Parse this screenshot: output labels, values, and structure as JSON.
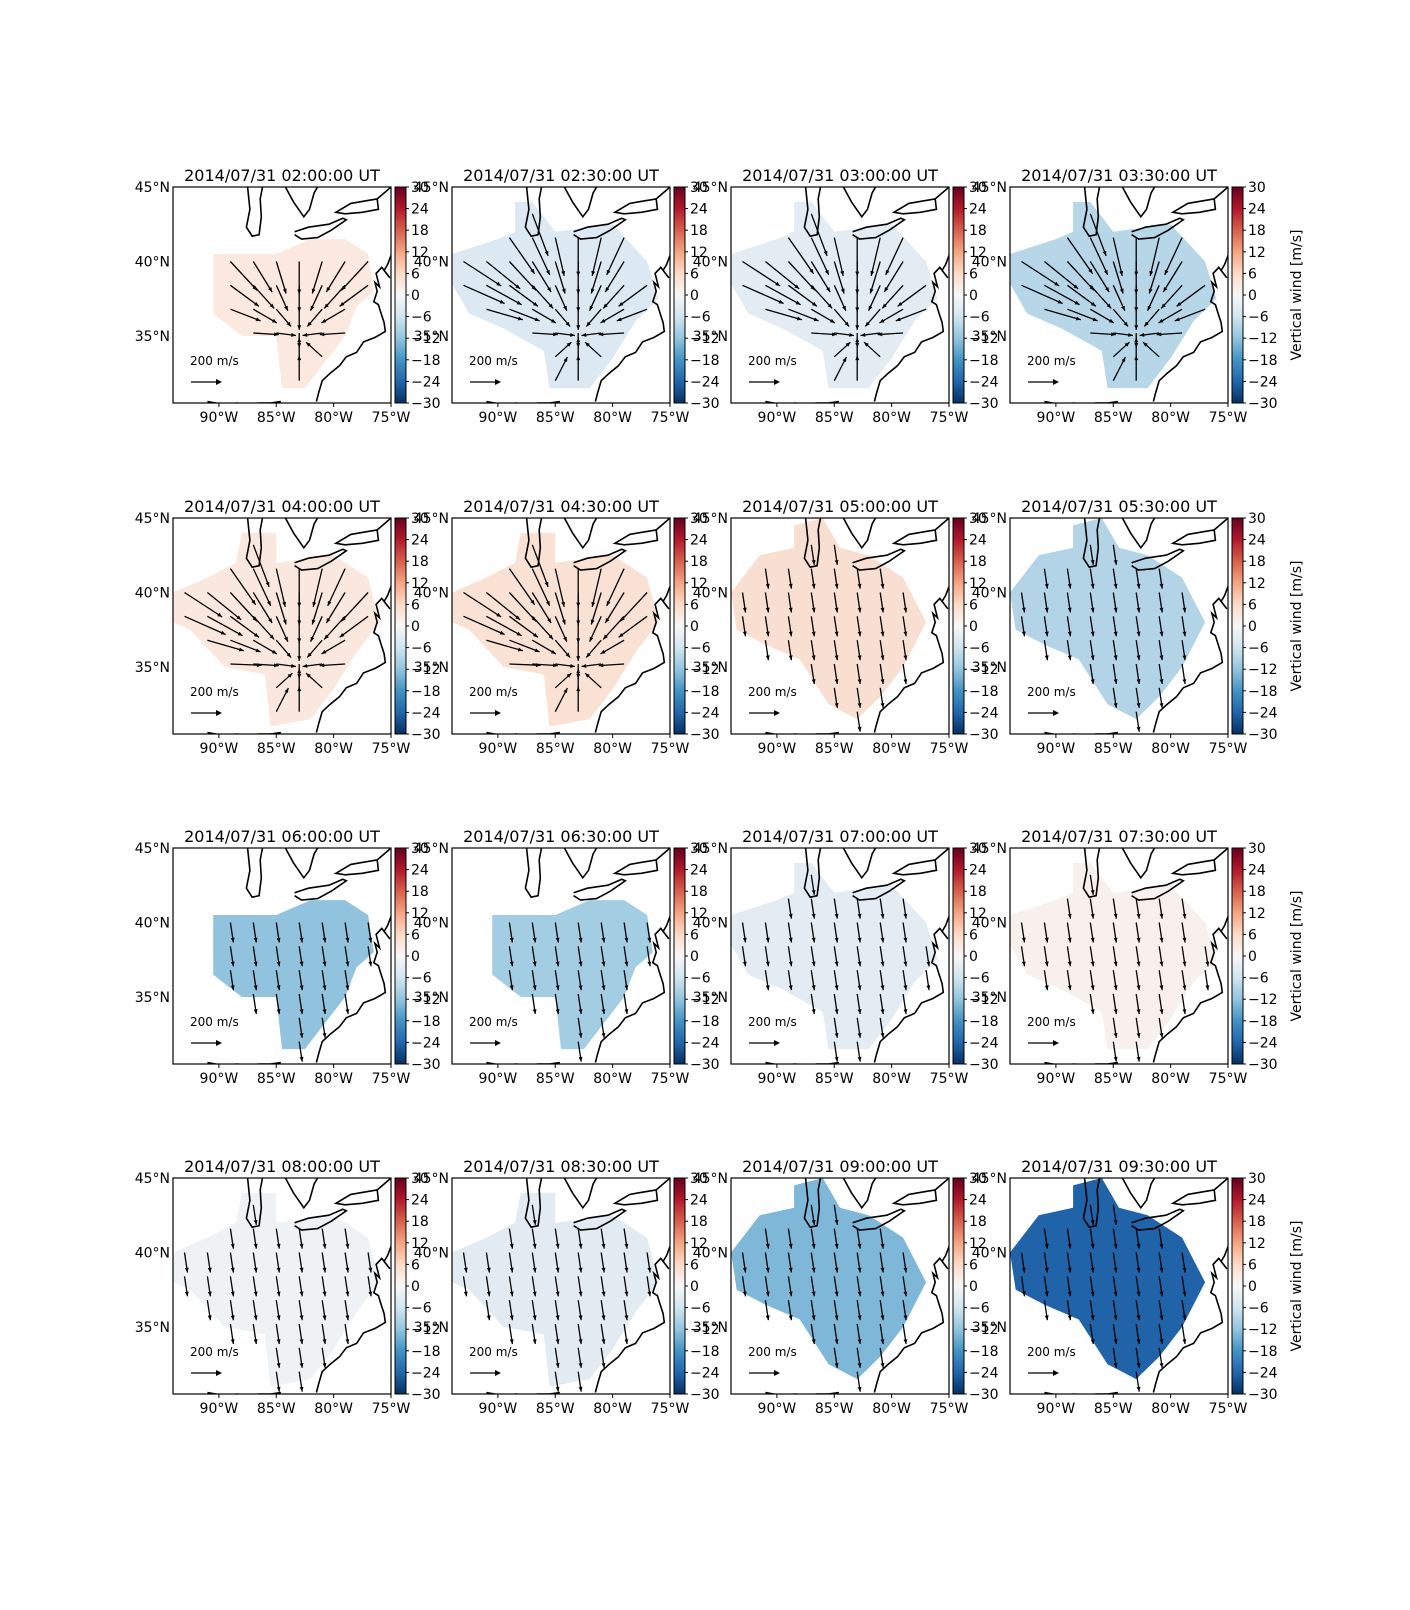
{
  "figure": {
    "colorbar_label": "Vertical wind [m/s]",
    "colorbar_ticks": [
      "30",
      "24",
      "18",
      "12",
      "6",
      "0",
      "−6",
      "−12",
      "−18",
      "−24",
      "−30"
    ],
    "lon_labels": [
      "90°W",
      "85°W",
      "80°W",
      "75°W"
    ],
    "lat_labels": [
      "45°N",
      "40°N",
      "35°N"
    ],
    "reference_arrow_label": "200 m/s",
    "colors": {
      "strong_positive": "#67001f",
      "positive": "#f7d6c6",
      "neutral": "#f7f7f7",
      "negative": "#b7d6e8",
      "strong_negative": "#053061",
      "coastline": "#000000",
      "arrow": "#000000"
    }
  },
  "chart_data": {
    "type": "heatmap",
    "panel_count": 16,
    "grid": "4x4",
    "colorbar_range": [
      -30,
      30
    ],
    "lon_range": [
      -94,
      -75
    ],
    "lat_range": [
      30.5,
      45
    ],
    "reference_arrow": {
      "value": 200,
      "unit": "m/s"
    },
    "panels": [
      {
        "title": "2014/07/31 02:00:00 UT",
        "vertical_wind": 2,
        "color": "#fbe9e0",
        "shape": 0,
        "flow": "convergent",
        "colorbar_labels": false
      },
      {
        "title": "2014/07/31 02:30:00 UT",
        "vertical_wind": -4,
        "color": "#dde9f2",
        "shape": 1,
        "flow": "convergent",
        "colorbar_labels": false
      },
      {
        "title": "2014/07/31 03:00:00 UT",
        "vertical_wind": -3,
        "color": "#e3ecf3",
        "shape": 1,
        "flow": "convergent",
        "colorbar_labels": false
      },
      {
        "title": "2014/07/31 03:30:00 UT",
        "vertical_wind": -10,
        "color": "#b7d6e8",
        "shape": 1,
        "flow": "convergent",
        "colorbar_labels": true
      },
      {
        "title": "2014/07/31 04:00:00 UT",
        "vertical_wind": 3,
        "color": "#fae8de",
        "shape": 2,
        "flow": "convergent",
        "colorbar_labels": false
      },
      {
        "title": "2014/07/31 04:30:00 UT",
        "vertical_wind": 4,
        "color": "#f9e1d4",
        "shape": 2,
        "flow": "convergent",
        "colorbar_labels": false
      },
      {
        "title": "2014/07/31 05:00:00 UT",
        "vertical_wind": 5,
        "color": "#f9dfd1",
        "shape": 3,
        "flow": "southward",
        "colorbar_labels": false
      },
      {
        "title": "2014/07/31 05:30:00 UT",
        "vertical_wind": -11,
        "color": "#b3d3e7",
        "shape": 3,
        "flow": "southward",
        "colorbar_labels": true
      },
      {
        "title": "2014/07/31 06:00:00 UT",
        "vertical_wind": -15,
        "color": "#91c3de",
        "shape": 4,
        "flow": "southward",
        "colorbar_labels": false
      },
      {
        "title": "2014/07/31 06:30:00 UT",
        "vertical_wind": -13,
        "color": "#a3cde3",
        "shape": 4,
        "flow": "southward",
        "colorbar_labels": false
      },
      {
        "title": "2014/07/31 07:00:00 UT",
        "vertical_wind": -3,
        "color": "#e3ecf3",
        "shape": 5,
        "flow": "southward",
        "colorbar_labels": false
      },
      {
        "title": "2014/07/31 07:30:00 UT",
        "vertical_wind": 1,
        "color": "#f8f0ec",
        "shape": 5,
        "flow": "southward",
        "colorbar_labels": true
      },
      {
        "title": "2014/07/31 08:00:00 UT",
        "vertical_wind": -1,
        "color": "#eef2f5",
        "shape": 6,
        "flow": "southward",
        "colorbar_labels": false
      },
      {
        "title": "2014/07/31 08:30:00 UT",
        "vertical_wind": -3,
        "color": "#e3ebf2",
        "shape": 6,
        "flow": "southward",
        "colorbar_labels": false
      },
      {
        "title": "2014/07/31 09:00:00 UT",
        "vertical_wind": -17,
        "color": "#7fb7d9",
        "shape": 7,
        "flow": "southward",
        "colorbar_labels": false
      },
      {
        "title": "2014/07/31 09:30:00 UT",
        "vertical_wind": -26,
        "color": "#2163a8",
        "shape": 7,
        "flow": "southward",
        "colorbar_labels": true
      }
    ],
    "region_shapes": [
      [
        [
          -90.5,
          40.5
        ],
        [
          -85,
          40.5
        ],
        [
          -82,
          41.5
        ],
        [
          -79,
          41.5
        ],
        [
          -77,
          40.5
        ],
        [
          -76.5,
          38
        ],
        [
          -78,
          37
        ],
        [
          -79,
          35
        ],
        [
          -80.5,
          33.5
        ],
        [
          -82.5,
          31.5
        ],
        [
          -84.5,
          31.5
        ],
        [
          -85,
          35
        ],
        [
          -88,
          35
        ],
        [
          -90.5,
          36.5
        ]
      ],
      [
        [
          -94,
          40.5
        ],
        [
          -90,
          41.5
        ],
        [
          -88.5,
          42
        ],
        [
          -88.5,
          44
        ],
        [
          -87,
          44
        ],
        [
          -85,
          42
        ],
        [
          -80,
          42.5
        ],
        [
          -77,
          40
        ],
        [
          -76,
          37.5
        ],
        [
          -78,
          36
        ],
        [
          -80,
          33.5
        ],
        [
          -82,
          31.5
        ],
        [
          -85.5,
          31.5
        ],
        [
          -86,
          34
        ],
        [
          -89.5,
          35.5
        ],
        [
          -92.5,
          36.5
        ],
        [
          -94,
          38.5
        ]
      ],
      [
        [
          -94,
          40
        ],
        [
          -91,
          41
        ],
        [
          -88.5,
          42
        ],
        [
          -88,
          44
        ],
        [
          -85,
          44
        ],
        [
          -85,
          42
        ],
        [
          -80,
          42.5
        ],
        [
          -77,
          41
        ],
        [
          -76,
          38
        ],
        [
          -78,
          36
        ],
        [
          -80,
          33.5
        ],
        [
          -82,
          31.5
        ],
        [
          -85.5,
          31
        ],
        [
          -86,
          34.5
        ],
        [
          -89.5,
          35
        ],
        [
          -92.5,
          37.5
        ],
        [
          -94,
          38
        ]
      ],
      [
        [
          -94,
          40
        ],
        [
          -91.5,
          42.5
        ],
        [
          -88.5,
          43
        ],
        [
          -88.5,
          44.5
        ],
        [
          -86,
          45
        ],
        [
          -84.5,
          43
        ],
        [
          -82,
          42.5
        ],
        [
          -79,
          41
        ],
        [
          -77,
          38
        ],
        [
          -79,
          35
        ],
        [
          -81,
          33
        ],
        [
          -83,
          31.5
        ],
        [
          -85.5,
          32.5
        ],
        [
          -88,
          35.5
        ],
        [
          -91,
          36.5
        ],
        [
          -93.5,
          37.5
        ]
      ]
    ]
  }
}
